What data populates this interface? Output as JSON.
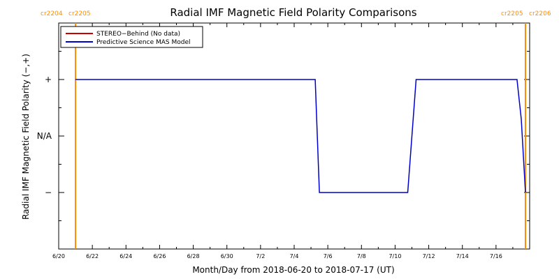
{
  "chart_data": {
    "type": "line",
    "title": "Radial IMF Magnetic Field Polarity Comparisons",
    "xlabel": "Month/Day from 2018-06-20 to 2018-07-17 (UT)",
    "ylabel": "Radial IMF Magnetic Field Polarity (−,+)",
    "x_ticks": [
      "6/20",
      "6/22",
      "6/24",
      "6/26",
      "6/28",
      "6/30",
      "7/2",
      "7/4",
      "7/6",
      "7/8",
      "7/10",
      "7/12",
      "7/14",
      "7/16"
    ],
    "y_ticks": [
      {
        "value": 1,
        "label": "+"
      },
      {
        "value": 0,
        "label": "N/A"
      },
      {
        "value": -1,
        "label": "−"
      }
    ],
    "xlim": [
      "2018-06-20T00:00",
      "2018-07-18T00:00"
    ],
    "ylim": [
      -2,
      2
    ],
    "carrington_labels": {
      "left": [
        "cr2204",
        "cr2205"
      ],
      "right": [
        "cr2205",
        "cr2206"
      ]
    },
    "carrington_boundaries": [
      "2018-06-21T00:00",
      "2018-07-17T18:00"
    ],
    "legend": {
      "position": "top-left",
      "entries": [
        {
          "name": "STEREO−Behind (No data)",
          "color": "#cc0000"
        },
        {
          "name": "Predictive Science MAS Model",
          "color": "#0000cc"
        }
      ]
    },
    "series": [
      {
        "name": "Predictive Science MAS Model",
        "color": "#0000cc",
        "points": [
          [
            "2018-06-21T00:00",
            1
          ],
          [
            "2018-07-05T06:00",
            1
          ],
          [
            "2018-07-05T12:00",
            -1
          ],
          [
            "2018-07-10T18:00",
            -1
          ],
          [
            "2018-07-11T06:00",
            1
          ],
          [
            "2018-07-17T06:00",
            1
          ],
          [
            "2018-07-17T12:00",
            0.3
          ],
          [
            "2018-07-17T18:00",
            -1
          ]
        ]
      }
    ],
    "colors": {
      "boundary": "#ff8c00",
      "stereo": "#cc0000",
      "model": "#0000cc"
    }
  }
}
